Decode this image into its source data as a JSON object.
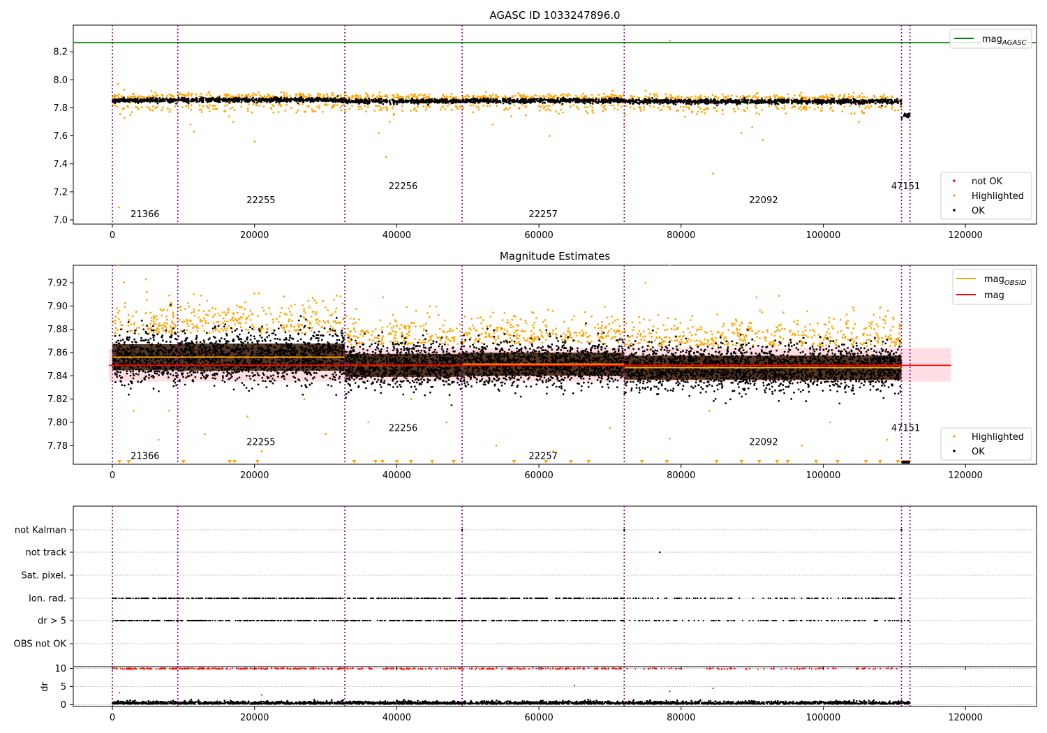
{
  "chart_data": [
    {
      "type": "scatter",
      "title": "AGASC ID 1033247896.0",
      "xlim": [
        -5500,
        130000
      ],
      "ylim": [
        6.97,
        8.39
      ],
      "xticks": [
        0,
        20000,
        40000,
        60000,
        80000,
        100000,
        120000
      ],
      "xtick_labels": [
        "0",
        "20000",
        "40000",
        "60000",
        "80000",
        "100000",
        "120000"
      ],
      "yticks": [
        7.0,
        7.2,
        7.4,
        7.6,
        7.8,
        8.0,
        8.2
      ],
      "ytick_labels": [
        "7.0",
        "7.2",
        "7.4",
        "7.6",
        "7.8",
        "8.0",
        "8.2"
      ],
      "obs_boundaries": [
        0,
        9200,
        32700,
        49200,
        72000,
        111000,
        112200
      ],
      "obs_labels": [
        {
          "text": "21366",
          "x": 4600,
          "y": 7.04
        },
        {
          "text": "22255",
          "x": 20900,
          "y": 7.14
        },
        {
          "text": "22256",
          "x": 40900,
          "y": 7.24
        },
        {
          "text": "22257",
          "x": 60600,
          "y": 7.04
        },
        {
          "text": "22092",
          "x": 91600,
          "y": 7.14
        },
        {
          "text": "47151",
          "x": 111600,
          "y": 7.24
        }
      ],
      "mag_agasc": 8.265,
      "segments": [
        {
          "x0": 0,
          "x1": 9200,
          "mean": 7.853
        },
        {
          "x0": 9200,
          "x1": 32700,
          "mean": 7.856
        },
        {
          "x0": 32700,
          "x1": 49200,
          "mean": 7.847
        },
        {
          "x0": 49200,
          "x1": 72000,
          "mean": 7.85
        },
        {
          "x0": 72000,
          "x1": 111000,
          "mean": 7.845
        },
        {
          "x0": 111000,
          "x1": 112200,
          "mean": 7.745
        }
      ],
      "highlighted_points": [
        [
          800,
          7.97
        ],
        [
          900,
          7.09
        ],
        [
          2500,
          7.75
        ],
        [
          3000,
          7.9
        ],
        [
          11000,
          7.68
        ],
        [
          11500,
          7.63
        ],
        [
          17000,
          7.7
        ],
        [
          20000,
          7.56
        ],
        [
          37500,
          7.62
        ],
        [
          38500,
          7.45
        ],
        [
          39000,
          7.7
        ],
        [
          53500,
          7.68
        ],
        [
          61500,
          7.6
        ],
        [
          72000,
          7.68
        ],
        [
          75000,
          7.92
        ],
        [
          78400,
          8.28
        ],
        [
          84500,
          7.33
        ],
        [
          88500,
          7.62
        ],
        [
          90000,
          7.66
        ],
        [
          91500,
          7.57
        ],
        [
          105000,
          7.7
        ]
      ],
      "legend": [
        {
          "label": "not OK",
          "color": "#ff0000",
          "marker": "dot"
        },
        {
          "label": "Highlighted",
          "color": "#ffa500",
          "marker": "dot"
        },
        {
          "label": "OK",
          "color": "#000000",
          "marker": "dot"
        }
      ],
      "legend_lines": [
        {
          "label": "mag",
          "sub": "AGASC",
          "color": "#008000"
        }
      ]
    },
    {
      "type": "scatter",
      "title": "Magnitude Estimates",
      "xlim": [
        -5500,
        130000
      ],
      "ylim": [
        7.764,
        7.935
      ],
      "xticks": [
        0,
        20000,
        40000,
        60000,
        80000,
        100000,
        120000
      ],
      "xtick_labels": [
        "0",
        "20000",
        "40000",
        "60000",
        "80000",
        "100000",
        "120000"
      ],
      "yticks": [
        7.78,
        7.8,
        7.82,
        7.84,
        7.86,
        7.88,
        7.9,
        7.92
      ],
      "ytick_labels": [
        "7.78",
        "7.80",
        "7.82",
        "7.84",
        "7.86",
        "7.88",
        "7.90",
        "7.92"
      ],
      "obs_labels": [
        {
          "text": "21366",
          "x": 4600,
          "y": 7.771
        },
        {
          "text": "22255",
          "x": 20900,
          "y": 7.783
        },
        {
          "text": "22256",
          "x": 40900,
          "y": 7.795
        },
        {
          "text": "22257",
          "x": 60600,
          "y": 7.771
        },
        {
          "text": "22092",
          "x": 91600,
          "y": 7.783
        },
        {
          "text": "47151",
          "x": 111600,
          "y": 7.795
        }
      ],
      "mag": 7.849,
      "mag_band": [
        7.835,
        7.864
      ],
      "mag_band_x": [
        -500,
        118000
      ],
      "obsid_segments": [
        {
          "x0": 0,
          "x1": 9200,
          "mean": 7.856,
          "sd": 0.0125
        },
        {
          "x0": 9200,
          "x1": 32700,
          "mean": 7.856,
          "sd": 0.013
        },
        {
          "x0": 32700,
          "x1": 49200,
          "mean": 7.849,
          "sd": 0.011
        },
        {
          "x0": 49200,
          "x1": 72000,
          "mean": 7.85,
          "sd": 0.011
        },
        {
          "x0": 72000,
          "x1": 111000,
          "mean": 7.847,
          "sd": 0.0115
        }
      ],
      "highlighted_points": [
        [
          800,
          7.935
        ],
        [
          3000,
          7.81
        ],
        [
          6500,
          7.785
        ],
        [
          8000,
          7.81
        ],
        [
          9500,
          7.8
        ],
        [
          13000,
          7.79
        ],
        [
          19000,
          7.805
        ],
        [
          21000,
          7.785
        ],
        [
          21000,
          7.775
        ],
        [
          27000,
          7.82
        ],
        [
          30000,
          7.79
        ],
        [
          36000,
          7.8
        ],
        [
          42000,
          7.82
        ],
        [
          47000,
          7.8
        ],
        [
          54000,
          7.78
        ],
        [
          62000,
          7.775
        ],
        [
          70000,
          7.795
        ],
        [
          75000,
          7.92
        ],
        [
          78400,
          7.935
        ],
        [
          78400,
          7.786
        ],
        [
          84000,
          7.81
        ],
        [
          97000,
          7.78
        ],
        [
          101000,
          7.8
        ],
        [
          109000,
          7.785
        ]
      ],
      "floor_markers_x": [
        1000,
        2300,
        10000,
        16500,
        17200,
        20400,
        34000,
        37000,
        38000,
        40000,
        42000,
        45000,
        48000,
        56500,
        61000,
        64500,
        67000,
        74500,
        78000,
        85000,
        88500,
        91000,
        93500,
        95000,
        99000,
        102000,
        106000,
        108000,
        110500,
        111400,
        112000
      ],
      "legend": [
        {
          "label": "Highlighted",
          "color": "#ffa500",
          "marker": "dot"
        },
        {
          "label": "OK",
          "color": "#000000",
          "marker": "dot"
        }
      ],
      "legend_lines": [
        {
          "label": "mag",
          "sub": "OBSID",
          "color": "#ffa500"
        },
        {
          "label": "mag",
          "sub": "",
          "color": "#ff0000"
        }
      ]
    },
    {
      "type": "scatter",
      "title": "",
      "xlim": [
        -5500,
        130000
      ],
      "xticks": [
        0,
        20000,
        40000,
        60000,
        80000,
        100000,
        120000
      ],
      "xtick_labels": [
        "0",
        "20000",
        "40000",
        "60000",
        "80000",
        "100000",
        "120000"
      ],
      "flag_labels": [
        "not Kalman",
        "not track",
        "Sat. pixel.",
        "Ion. rad.",
        "dr > 5",
        "OBS not OK"
      ],
      "flag_points": {
        "not Kalman": [
          49200,
          72000,
          111000
        ],
        "not track": [
          77000
        ],
        "Sat. pixel.": [],
        "Ion. rad.": "frequent",
        "dr > 5": "frequent",
        "OBS not OK": []
      },
      "dr_ylabel": "dr",
      "dr_yticks": [
        0,
        5,
        10
      ],
      "dr_ytick_labels": [
        "0",
        "5",
        "10"
      ],
      "dr_ylim": [
        -0.5,
        10.5
      ],
      "dr_outliers": [
        [
          1000,
          3.3
        ],
        [
          21000,
          2.7
        ],
        [
          65000,
          5.3
        ],
        [
          78400,
          3.7
        ],
        [
          84500,
          4.5
        ]
      ]
    }
  ]
}
